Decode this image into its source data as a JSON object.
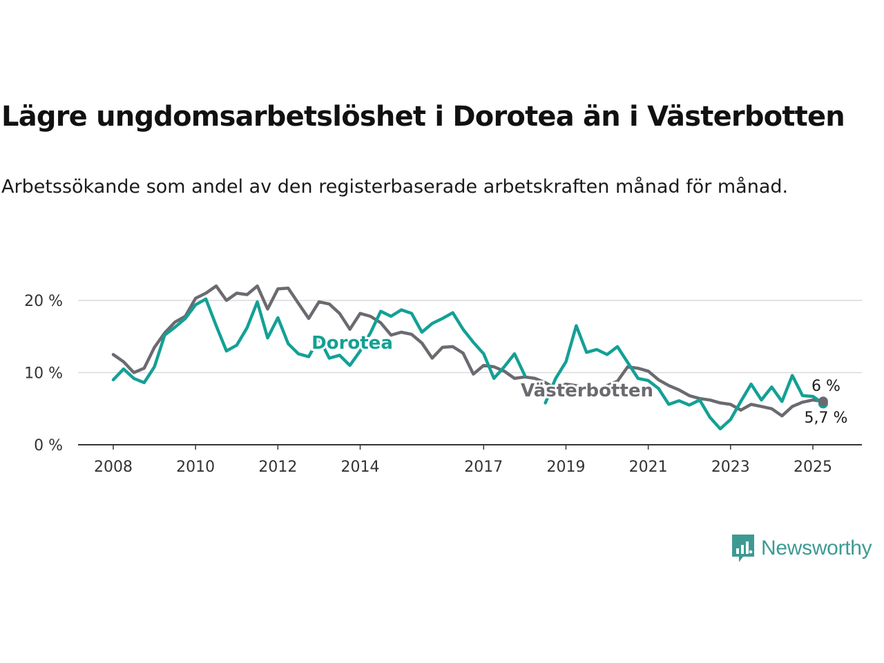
{
  "title": "Lägre ungdomsarbetslöshet i Dorotea än i Västerbotten",
  "subtitle": "Arbetssökande som andel av den registerbaserade arbetskraften månad för månad.",
  "brand": {
    "name": "Newsworthy",
    "color": "#3d9a93",
    "icon": "newsworthy-logo-icon"
  },
  "colors": {
    "dorotea": "#14a095",
    "vasterbotten": "#6b6a70",
    "grid": "#d9d9d9",
    "axis": "#333333"
  },
  "chart_data": {
    "type": "line",
    "xlabel": "",
    "ylabel": "",
    "xlim": [
      "2008-01",
      "2025-12"
    ],
    "ylim": [
      0,
      20
    ],
    "yticks": [
      0,
      10,
      20
    ],
    "ytick_labels": [
      "0 %",
      "10 %",
      "20 %"
    ],
    "xtick_labels": [
      "2008",
      "2010",
      "2012",
      "2014",
      "2017",
      "2019",
      "2021",
      "2023",
      "2025"
    ],
    "grid": true,
    "series": [
      {
        "name": "Dorotea",
        "color": "#14a095",
        "end_label": "5,7 %",
        "points": [
          [
            "2008-01",
            9.0
          ],
          [
            "2008-04",
            10.5
          ],
          [
            "2008-07",
            9.2
          ],
          [
            "2008-10",
            8.6
          ],
          [
            "2009-01",
            10.8
          ],
          [
            "2009-04",
            15.2
          ],
          [
            "2009-07",
            16.3
          ],
          [
            "2009-10",
            17.5
          ],
          [
            "2010-01",
            19.4
          ],
          [
            "2010-04",
            20.2
          ],
          [
            "2010-07",
            16.5
          ],
          [
            "2010-10",
            13.0
          ],
          [
            "2011-01",
            13.8
          ],
          [
            "2011-04",
            16.2
          ],
          [
            "2011-07",
            19.8
          ],
          [
            "2011-10",
            14.8
          ],
          [
            "2012-01",
            17.6
          ],
          [
            "2012-04",
            14.0
          ],
          [
            "2012-07",
            12.6
          ],
          [
            "2012-10",
            12.2
          ],
          [
            "2013-01",
            14.8
          ],
          [
            "2013-04",
            12.0
          ],
          [
            "2013-07",
            12.4
          ],
          [
            "2013-10",
            11.0
          ],
          [
            "2014-01",
            13.0
          ],
          [
            "2014-04",
            15.5
          ],
          [
            "2014-07",
            18.5
          ],
          [
            "2014-10",
            17.8
          ],
          [
            "2015-01",
            18.7
          ],
          [
            "2015-04",
            18.2
          ],
          [
            "2015-07",
            15.6
          ],
          [
            "2015-10",
            16.8
          ],
          [
            "2016-01",
            17.5
          ],
          [
            "2016-04",
            18.3
          ],
          [
            "2016-07",
            16.0
          ],
          [
            "2016-10",
            14.2
          ],
          [
            "2017-01",
            12.6
          ],
          [
            "2017-04",
            9.2
          ],
          [
            "2017-07",
            10.8
          ],
          [
            "2017-10",
            12.6
          ],
          [
            "2018-01",
            9.6
          ],
          [
            "2018-04",
            null
          ],
          [
            "2018-07",
            5.8
          ],
          [
            "2018-10",
            9.2
          ],
          [
            "2019-01",
            11.5
          ],
          [
            "2019-04",
            16.5
          ],
          [
            "2019-07",
            12.8
          ],
          [
            "2019-10",
            13.2
          ],
          [
            "2020-01",
            12.5
          ],
          [
            "2020-04",
            13.6
          ],
          [
            "2020-07",
            11.4
          ],
          [
            "2020-10",
            9.2
          ],
          [
            "2021-01",
            8.9
          ],
          [
            "2021-04",
            7.8
          ],
          [
            "2021-07",
            5.6
          ],
          [
            "2021-10",
            6.1
          ],
          [
            "2022-01",
            5.5
          ],
          [
            "2022-04",
            6.2
          ],
          [
            "2022-07",
            3.8
          ],
          [
            "2022-10",
            2.2
          ],
          [
            "2023-01",
            3.5
          ],
          [
            "2023-04",
            6.0
          ],
          [
            "2023-07",
            8.4
          ],
          [
            "2023-10",
            6.2
          ],
          [
            "2024-01",
            8.0
          ],
          [
            "2024-04",
            6.0
          ],
          [
            "2024-07",
            9.6
          ],
          [
            "2024-10",
            6.8
          ],
          [
            "2025-01",
            6.7
          ],
          [
            "2025-04",
            5.7
          ]
        ]
      },
      {
        "name": "Västerbotten",
        "color": "#6b6a70",
        "end_label": "6 %",
        "points": [
          [
            "2008-01",
            12.5
          ],
          [
            "2008-04",
            11.5
          ],
          [
            "2008-07",
            10.0
          ],
          [
            "2008-10",
            10.6
          ],
          [
            "2009-01",
            13.5
          ],
          [
            "2009-04",
            15.5
          ],
          [
            "2009-07",
            17.0
          ],
          [
            "2009-10",
            17.8
          ],
          [
            "2010-01",
            20.3
          ],
          [
            "2010-04",
            21.0
          ],
          [
            "2010-07",
            22.0
          ],
          [
            "2010-10",
            20.0
          ],
          [
            "2011-01",
            21.0
          ],
          [
            "2011-04",
            20.8
          ],
          [
            "2011-07",
            22.0
          ],
          [
            "2011-10",
            18.8
          ],
          [
            "2012-01",
            21.6
          ],
          [
            "2012-04",
            21.7
          ],
          [
            "2012-07",
            19.6
          ],
          [
            "2012-10",
            17.5
          ],
          [
            "2013-01",
            19.8
          ],
          [
            "2013-04",
            19.5
          ],
          [
            "2013-07",
            18.2
          ],
          [
            "2013-10",
            16.0
          ],
          [
            "2014-01",
            18.2
          ],
          [
            "2014-04",
            17.8
          ],
          [
            "2014-07",
            16.9
          ],
          [
            "2014-10",
            15.2
          ],
          [
            "2015-01",
            15.6
          ],
          [
            "2015-04",
            15.3
          ],
          [
            "2015-07",
            14.1
          ],
          [
            "2015-10",
            12.0
          ],
          [
            "2016-01",
            13.5
          ],
          [
            "2016-04",
            13.6
          ],
          [
            "2016-07",
            12.7
          ],
          [
            "2016-10",
            9.8
          ],
          [
            "2017-01",
            11.0
          ],
          [
            "2017-04",
            10.8
          ],
          [
            "2017-07",
            10.2
          ],
          [
            "2017-10",
            9.2
          ],
          [
            "2018-01",
            9.4
          ],
          [
            "2018-04",
            9.2
          ],
          [
            "2018-07",
            8.6
          ],
          [
            "2018-10",
            7.8
          ],
          [
            "2019-01",
            8.4
          ],
          [
            "2019-04",
            8.2
          ],
          [
            "2019-07",
            7.8
          ],
          [
            "2019-10",
            7.5
          ],
          [
            "2020-01",
            8.2
          ],
          [
            "2020-04",
            8.8
          ],
          [
            "2020-07",
            10.8
          ],
          [
            "2020-10",
            10.6
          ],
          [
            "2021-01",
            10.2
          ],
          [
            "2021-04",
            9.0
          ],
          [
            "2021-07",
            8.2
          ],
          [
            "2021-10",
            7.6
          ],
          [
            "2022-01",
            6.8
          ],
          [
            "2022-04",
            6.4
          ],
          [
            "2022-07",
            6.2
          ],
          [
            "2022-10",
            5.8
          ],
          [
            "2023-01",
            5.6
          ],
          [
            "2023-04",
            4.8
          ],
          [
            "2023-07",
            5.6
          ],
          [
            "2023-10",
            5.3
          ],
          [
            "2024-01",
            5.0
          ],
          [
            "2024-04",
            4.0
          ],
          [
            "2024-07",
            5.3
          ],
          [
            "2024-10",
            5.9
          ],
          [
            "2025-01",
            6.2
          ],
          [
            "2025-04",
            6.0
          ]
        ]
      }
    ]
  }
}
